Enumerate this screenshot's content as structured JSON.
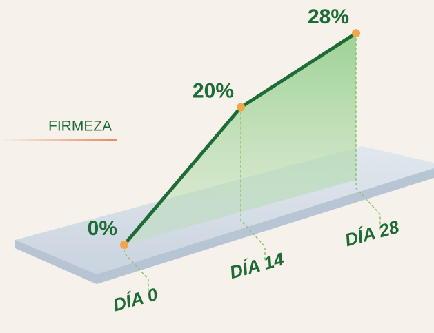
{
  "chart_data": {
    "type": "line",
    "label": "FIRMEZA",
    "categories": [
      "DÍA 0",
      "DÍA 14",
      "DÍA 28"
    ],
    "values": [
      0,
      20,
      28
    ],
    "value_labels": [
      "0%",
      "20%",
      "28%"
    ],
    "color": "#1d6b35",
    "marker_color": "#f2a64a"
  }
}
